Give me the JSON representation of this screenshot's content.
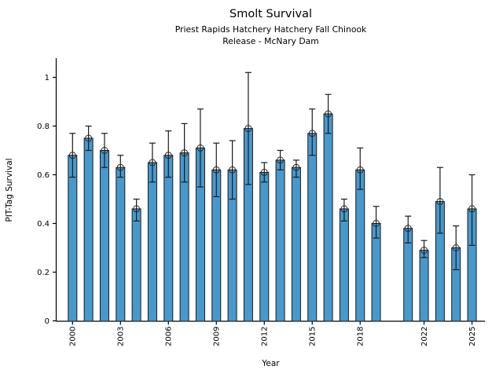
{
  "figure": {
    "title": "Smolt Survival",
    "subtitle_line1": "Priest Rapids Hatchery Hatchery Fall Chinook",
    "subtitle_line2": "Release - McNary Dam"
  },
  "chart_data": {
    "type": "bar",
    "title": "Smolt Survival",
    "subtitle": [
      "Priest Rapids Hatchery Hatchery Fall Chinook",
      "Release - McNary Dam"
    ],
    "xlabel": "Year",
    "ylabel": "PIT-Tag Survival",
    "categories": [
      2000,
      2001,
      2002,
      2003,
      2004,
      2005,
      2006,
      2007,
      2008,
      2009,
      2010,
      2011,
      2012,
      2013,
      2014,
      2015,
      2016,
      2017,
      2018,
      2019,
      2021,
      2022,
      2023,
      2024,
      2025
    ],
    "values": [
      0.68,
      0.75,
      0.7,
      0.63,
      0.46,
      0.65,
      0.68,
      0.69,
      0.71,
      0.62,
      0.62,
      0.79,
      0.61,
      0.66,
      0.63,
      0.77,
      0.85,
      0.46,
      0.62,
      0.4,
      0.38,
      0.29,
      0.49,
      0.3,
      0.46
    ],
    "error_low": [
      0.59,
      0.7,
      0.63,
      0.59,
      0.41,
      0.57,
      0.59,
      0.57,
      0.55,
      0.51,
      0.5,
      0.56,
      0.57,
      0.62,
      0.59,
      0.68,
      0.77,
      0.41,
      0.54,
      0.34,
      0.32,
      0.26,
      0.36,
      0.21,
      0.31
    ],
    "error_high": [
      0.77,
      0.8,
      0.77,
      0.68,
      0.5,
      0.73,
      0.78,
      0.81,
      0.87,
      0.73,
      0.74,
      1.02,
      0.65,
      0.7,
      0.66,
      0.87,
      0.93,
      0.5,
      0.71,
      0.47,
      0.43,
      0.33,
      0.63,
      0.39,
      0.6
    ],
    "missing_years": [
      2020
    ],
    "ylim": [
      0,
      1.08
    ],
    "yticks": [
      0,
      0.2,
      0.4,
      0.6,
      0.8,
      1
    ],
    "ytick_labels": [
      "0",
      "0.2",
      "0.4",
      "0.6",
      "0.8",
      "1"
    ],
    "xtick_labeled_years": [
      2000,
      2003,
      2006,
      2009,
      2012,
      2015,
      2018,
      2022,
      2025
    ],
    "xtick_labels": [
      "2000",
      "2003",
      "2006",
      "2009",
      "2012",
      "2015",
      "2018",
      "2022",
      "2025"
    ],
    "grid": false,
    "legend": null,
    "marker": "open-circle",
    "bar_color": "#4799cd",
    "bar_edge_color": "#1a1a1a",
    "error_color": "#1a1a1a",
    "axis_color": "#000000"
  }
}
